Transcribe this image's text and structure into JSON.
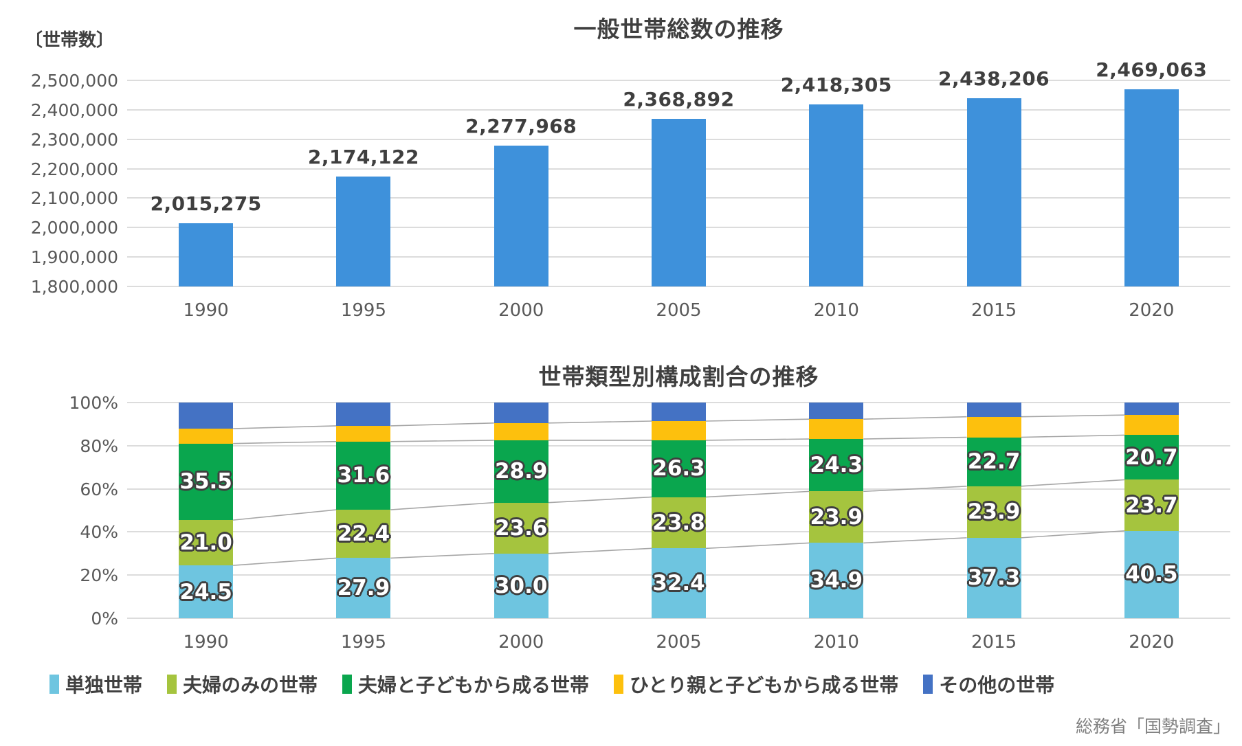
{
  "palette": {
    "title_text": "#3F3F3F",
    "axis_text": "#595959",
    "grid": "#DCDCDC",
    "connector": "#A6A6A6",
    "source_text": "#7F7F7F",
    "label_outline": "#3F3F3F"
  },
  "source": "総務省「国勢調査」",
  "chart_data": [
    {
      "type": "bar",
      "title": "一般世帯総数の推移",
      "unit_label": "〔世帯数〕",
      "bar_color": "#3E91DB",
      "categories": [
        "1990",
        "1995",
        "2000",
        "2005",
        "2010",
        "2015",
        "2020"
      ],
      "values": [
        2015275,
        2174122,
        2277968,
        2368892,
        2418305,
        2438206,
        2469063
      ],
      "value_labels": [
        "2,015,275",
        "2,174,122",
        "2,277,968",
        "2,368,892",
        "2,418,305",
        "2,438,206",
        "2,469,063"
      ],
      "ylim": [
        1800000,
        2500000
      ],
      "y_tick_labels": [
        "2,500,000",
        "2,400,000",
        "2,300,000",
        "2,200,000",
        "2,100,000",
        "2,000,000",
        "1,900,000",
        "1,800,000"
      ],
      "grid": true,
      "legend_position": "none"
    },
    {
      "type": "bar",
      "subtype": "stacked-100-percent",
      "title": "世帯類型別構成割合の推移",
      "categories": [
        "1990",
        "1995",
        "2000",
        "2005",
        "2010",
        "2015",
        "2020"
      ],
      "ylim": [
        0,
        100
      ],
      "y_tick_labels": [
        "100%",
        "80%",
        "60%",
        "40%",
        "20%",
        "0%"
      ],
      "grid": true,
      "legend_position": "bottom",
      "series": [
        {
          "name": "単独世帯",
          "color": "#6EC5E0",
          "show_labels": true,
          "values": [
            24.5,
            27.9,
            30.0,
            32.4,
            34.9,
            37.3,
            40.5
          ]
        },
        {
          "name": "夫婦のみの世帯",
          "color": "#A5C43E",
          "show_labels": true,
          "values": [
            21.0,
            22.4,
            23.6,
            23.8,
            23.9,
            23.9,
            23.7
          ]
        },
        {
          "name": "夫婦と子どもから成る世帯",
          "color": "#0AA64E",
          "show_labels": true,
          "values": [
            35.5,
            31.6,
            28.9,
            26.3,
            24.3,
            22.7,
            20.7
          ]
        },
        {
          "name": "ひとり親と子どもから成る世帯",
          "color": "#FDC00D",
          "show_labels": false,
          "values": [
            6.9,
            7.3,
            8.0,
            8.9,
            9.2,
            9.5,
            9.3
          ]
        },
        {
          "name": "その他の世帯",
          "color": "#4472C4",
          "show_labels": false,
          "values": [
            12.1,
            10.8,
            9.5,
            8.6,
            7.7,
            6.6,
            5.8
          ]
        }
      ]
    }
  ]
}
